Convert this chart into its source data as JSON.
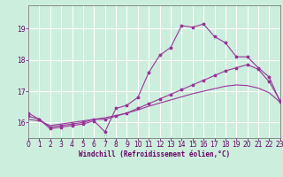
{
  "xlabel": "Windchill (Refroidissement éolien,°C)",
  "bg_color": "#cceedd",
  "grid_color": "#aaddcc",
  "line_color": "#993399",
  "xmin": 0,
  "xmax": 23,
  "ymin": 15.5,
  "ymax": 19.75,
  "yticks": [
    16,
    17,
    18,
    19
  ],
  "xticks": [
    0,
    1,
    2,
    3,
    4,
    5,
    6,
    7,
    8,
    9,
    10,
    11,
    12,
    13,
    14,
    15,
    16,
    17,
    18,
    19,
    20,
    21,
    22,
    23
  ],
  "series1_x": [
    0,
    1,
    2,
    3,
    4,
    5,
    6,
    7,
    8,
    9,
    10,
    11,
    12,
    13,
    14,
    15,
    16,
    17,
    18,
    19,
    20,
    21,
    22,
    23
  ],
  "series1_y": [
    16.3,
    16.1,
    15.8,
    15.85,
    15.9,
    15.95,
    16.05,
    15.7,
    16.45,
    16.55,
    16.8,
    17.6,
    18.15,
    18.4,
    19.1,
    19.05,
    19.15,
    18.75,
    18.55,
    18.1,
    18.1,
    17.75,
    17.45,
    16.65
  ],
  "series2_x": [
    0,
    1,
    2,
    3,
    4,
    5,
    6,
    7,
    8,
    9,
    10,
    11,
    12,
    13,
    14,
    15,
    16,
    17,
    18,
    19,
    20,
    21,
    22,
    23
  ],
  "series2_y": [
    16.2,
    16.1,
    15.85,
    15.9,
    15.95,
    16.0,
    16.1,
    16.1,
    16.2,
    16.3,
    16.45,
    16.6,
    16.75,
    16.9,
    17.05,
    17.2,
    17.35,
    17.5,
    17.65,
    17.75,
    17.85,
    17.7,
    17.3,
    16.7
  ],
  "series3_x": [
    0,
    1,
    2,
    3,
    4,
    5,
    6,
    7,
    8,
    9,
    10,
    11,
    12,
    13,
    14,
    15,
    16,
    17,
    18,
    19,
    20,
    21,
    22,
    23
  ],
  "series3_y": [
    16.1,
    16.05,
    15.9,
    15.95,
    16.0,
    16.05,
    16.1,
    16.15,
    16.22,
    16.3,
    16.4,
    16.52,
    16.62,
    16.72,
    16.82,
    16.92,
    17.0,
    17.08,
    17.16,
    17.2,
    17.18,
    17.1,
    16.95,
    16.65
  ],
  "label_fontsize": 5.5,
  "tick_fontsize": 5.5
}
